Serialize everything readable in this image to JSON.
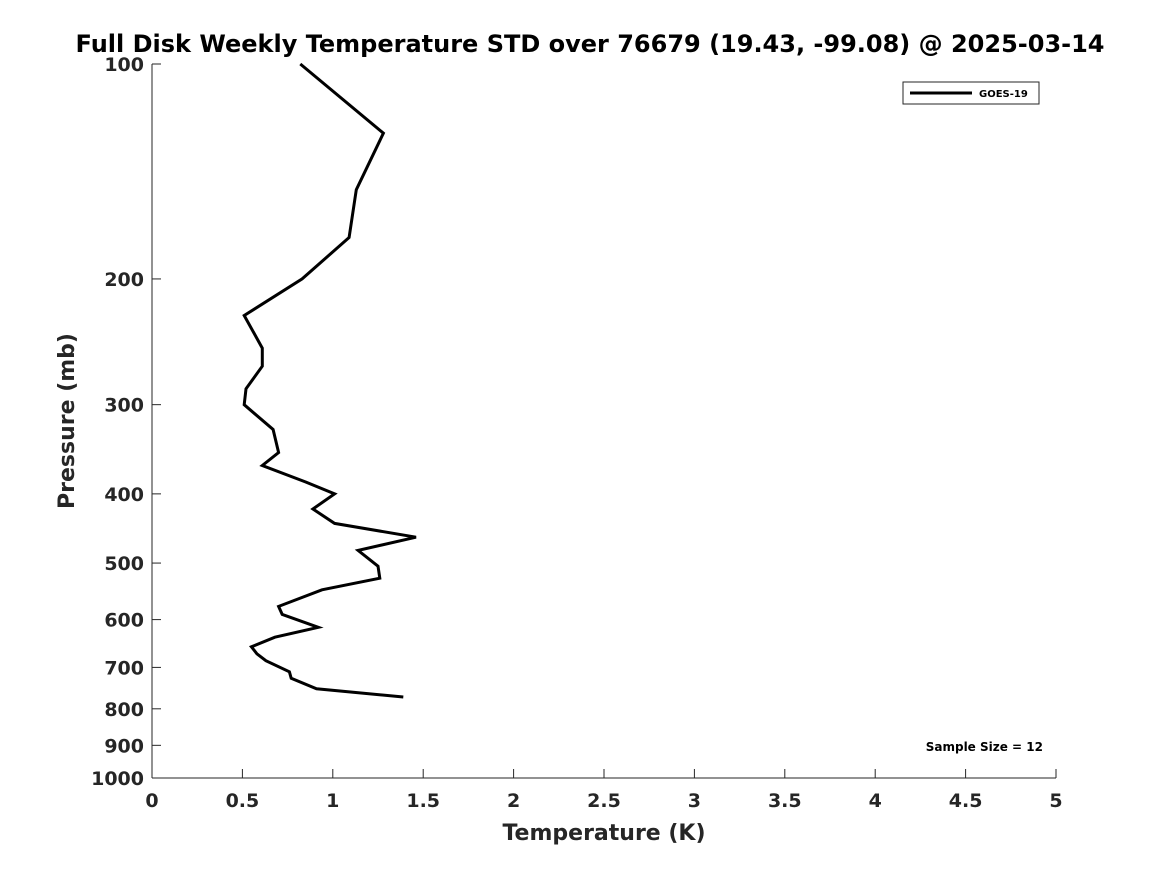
{
  "chart_data": {
    "type": "line",
    "title": "Full Disk Weekly Temperature STD over 76679 (19.43, -99.08) @ 2025-03-14",
    "xlabel": "Temperature (K)",
    "ylabel": "Pressure (mb)",
    "xlim": [
      0,
      5
    ],
    "ylim": [
      100,
      1000
    ],
    "y_scale": "log",
    "y_reversed": true,
    "grid": false,
    "legend_position": "top-right",
    "x_ticks": [
      0,
      0.5,
      1,
      1.5,
      2,
      2.5,
      3,
      3.5,
      4,
      4.5,
      5
    ],
    "x_tick_labels": [
      "0",
      "0.5",
      "1",
      "1.5",
      "2",
      "2.5",
      "3",
      "3.5",
      "4",
      "4.5",
      "5"
    ],
    "y_ticks": [
      100,
      200,
      300,
      400,
      500,
      600,
      700,
      800,
      900,
      1000
    ],
    "y_tick_labels": [
      "100",
      "200",
      "300",
      "400",
      "500",
      "600",
      "700",
      "800",
      "900",
      "1000"
    ],
    "series": [
      {
        "name": "GOES-19",
        "color": "#000000",
        "points": [
          {
            "x": 0.82,
            "y": 100
          },
          {
            "x": 1.28,
            "y": 125
          },
          {
            "x": 1.13,
            "y": 150
          },
          {
            "x": 1.09,
            "y": 175
          },
          {
            "x": 0.83,
            "y": 200
          },
          {
            "x": 0.51,
            "y": 225
          },
          {
            "x": 0.61,
            "y": 250
          },
          {
            "x": 0.61,
            "y": 265
          },
          {
            "x": 0.52,
            "y": 285
          },
          {
            "x": 0.51,
            "y": 300
          },
          {
            "x": 0.67,
            "y": 325
          },
          {
            "x": 0.7,
            "y": 350
          },
          {
            "x": 0.61,
            "y": 365
          },
          {
            "x": 0.85,
            "y": 385
          },
          {
            "x": 1.01,
            "y": 400
          },
          {
            "x": 0.89,
            "y": 420
          },
          {
            "x": 1.01,
            "y": 440
          },
          {
            "x": 1.46,
            "y": 460
          },
          {
            "x": 1.14,
            "y": 480
          },
          {
            "x": 1.25,
            "y": 505
          },
          {
            "x": 1.26,
            "y": 525
          },
          {
            "x": 0.94,
            "y": 545
          },
          {
            "x": 0.7,
            "y": 575
          },
          {
            "x": 0.72,
            "y": 590
          },
          {
            "x": 0.92,
            "y": 615
          },
          {
            "x": 0.68,
            "y": 635
          },
          {
            "x": 0.55,
            "y": 655
          },
          {
            "x": 0.58,
            "y": 670
          },
          {
            "x": 0.63,
            "y": 685
          },
          {
            "x": 0.76,
            "y": 710
          },
          {
            "x": 0.77,
            "y": 725
          },
          {
            "x": 0.91,
            "y": 750
          },
          {
            "x": 1.39,
            "y": 770
          }
        ]
      }
    ],
    "annotations": [
      {
        "text": "Sample Size = 12",
        "position": "bottom-right"
      }
    ]
  }
}
